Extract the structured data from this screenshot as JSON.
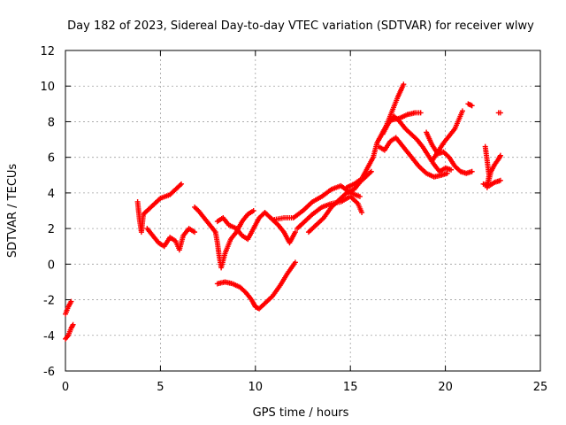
{
  "chart_data": {
    "type": "scatter",
    "title": "Day 182 of 2023, Sidereal Day-to-day VTEC variation (SDTVAR) for receiver wlwy",
    "xlabel": "GPS time / hours",
    "ylabel": "SDTVAR / TECUs",
    "xlim": [
      0,
      25
    ],
    "ylim": [
      -6,
      12
    ],
    "xticks": [
      "0",
      "5",
      "10",
      "15",
      "20",
      "25"
    ],
    "yticks": [
      "-6",
      "-4",
      "-2",
      "0",
      "2",
      "4",
      "6",
      "8",
      "10",
      "12"
    ],
    "grid": true,
    "marker": "plus",
    "series_color": "#ff0000",
    "segments": [
      {
        "name": "trace-1",
        "points": [
          [
            0.0,
            -2.8
          ],
          [
            0.15,
            -2.4
          ],
          [
            0.3,
            -2.1
          ]
        ]
      },
      {
        "name": "trace-2",
        "points": [
          [
            0.0,
            -4.2
          ],
          [
            0.15,
            -4.0
          ],
          [
            0.3,
            -3.6
          ],
          [
            0.4,
            -3.4
          ]
        ]
      },
      {
        "name": "trace-3",
        "points": [
          [
            3.8,
            3.5
          ],
          [
            3.9,
            2.5
          ],
          [
            4.0,
            1.8
          ],
          [
            4.1,
            2.8
          ],
          [
            4.3,
            3.0
          ],
          [
            4.6,
            3.3
          ],
          [
            5.0,
            3.7
          ],
          [
            5.5,
            3.9
          ],
          [
            5.8,
            4.2
          ],
          [
            6.1,
            4.5
          ]
        ]
      },
      {
        "name": "trace-4",
        "points": [
          [
            4.3,
            2.0
          ],
          [
            4.6,
            1.6
          ],
          [
            4.9,
            1.2
          ],
          [
            5.2,
            1.0
          ],
          [
            5.5,
            1.5
          ],
          [
            5.8,
            1.3
          ],
          [
            6.0,
            0.8
          ],
          [
            6.2,
            1.6
          ],
          [
            6.5,
            2.0
          ],
          [
            6.8,
            1.8
          ]
        ]
      },
      {
        "name": "trace-5",
        "points": [
          [
            6.8,
            3.2
          ],
          [
            7.0,
            3.0
          ],
          [
            7.3,
            2.6
          ],
          [
            7.6,
            2.2
          ],
          [
            7.9,
            1.8
          ],
          [
            8.0,
            1.2
          ],
          [
            8.1,
            0.4
          ],
          [
            8.2,
            -0.2
          ],
          [
            8.4,
            0.6
          ],
          [
            8.7,
            1.4
          ],
          [
            9.0,
            1.8
          ],
          [
            9.3,
            2.4
          ],
          [
            9.6,
            2.8
          ],
          [
            9.9,
            3.0
          ]
        ]
      },
      {
        "name": "trace-6",
        "points": [
          [
            8.0,
            2.4
          ],
          [
            8.3,
            2.6
          ],
          [
            8.6,
            2.2
          ],
          [
            9.0,
            2.0
          ],
          [
            9.3,
            1.6
          ],
          [
            9.6,
            1.4
          ],
          [
            9.9,
            2.0
          ],
          [
            10.2,
            2.6
          ],
          [
            10.5,
            2.9
          ],
          [
            10.8,
            2.6
          ],
          [
            11.2,
            2.2
          ],
          [
            11.5,
            1.8
          ],
          [
            11.8,
            1.2
          ],
          [
            12.1,
            1.8
          ]
        ]
      },
      {
        "name": "trace-7",
        "points": [
          [
            8.0,
            -1.1
          ],
          [
            8.4,
            -1.0
          ],
          [
            8.8,
            -1.1
          ],
          [
            9.2,
            -1.3
          ],
          [
            9.5,
            -1.6
          ],
          [
            9.8,
            -2.0
          ],
          [
            10.0,
            -2.4
          ],
          [
            10.2,
            -2.5
          ],
          [
            10.5,
            -2.2
          ],
          [
            10.9,
            -1.8
          ],
          [
            11.3,
            -1.2
          ],
          [
            11.7,
            -0.5
          ],
          [
            12.1,
            0.1
          ]
        ]
      },
      {
        "name": "trace-8",
        "points": [
          [
            11.0,
            2.5
          ],
          [
            11.5,
            2.6
          ],
          [
            12.0,
            2.6
          ],
          [
            12.5,
            3.0
          ],
          [
            13.0,
            3.5
          ],
          [
            13.5,
            3.8
          ],
          [
            14.0,
            4.2
          ],
          [
            14.5,
            4.4
          ],
          [
            15.0,
            4.0
          ],
          [
            15.5,
            3.8
          ]
        ]
      },
      {
        "name": "trace-9",
        "points": [
          [
            12.2,
            2.0
          ],
          [
            12.6,
            2.4
          ],
          [
            13.0,
            2.8
          ],
          [
            13.5,
            3.2
          ],
          [
            14.0,
            3.4
          ],
          [
            14.5,
            3.5
          ],
          [
            15.0,
            3.8
          ],
          [
            15.4,
            3.4
          ],
          [
            15.6,
            2.9
          ]
        ]
      },
      {
        "name": "trace-10",
        "points": [
          [
            12.8,
            1.8
          ],
          [
            13.2,
            2.2
          ],
          [
            13.6,
            2.6
          ],
          [
            14.0,
            3.2
          ],
          [
            14.4,
            3.6
          ],
          [
            14.8,
            4.0
          ],
          [
            15.2,
            4.2
          ],
          [
            15.5,
            4.6
          ],
          [
            15.8,
            4.9
          ],
          [
            16.1,
            5.2
          ]
        ]
      },
      {
        "name": "trace-11",
        "points": [
          [
            14.8,
            4.3
          ],
          [
            15.2,
            4.5
          ],
          [
            15.6,
            4.8
          ],
          [
            15.9,
            5.4
          ],
          [
            16.2,
            6.0
          ],
          [
            16.4,
            6.8
          ],
          [
            16.6,
            7.2
          ],
          [
            16.9,
            7.8
          ],
          [
            17.2,
            8.6
          ],
          [
            17.5,
            9.4
          ],
          [
            17.8,
            10.1
          ]
        ]
      },
      {
        "name": "trace-12",
        "points": [
          [
            16.5,
            6.6
          ],
          [
            16.8,
            6.4
          ],
          [
            17.1,
            6.9
          ],
          [
            17.4,
            7.1
          ],
          [
            17.7,
            6.7
          ],
          [
            18.0,
            6.3
          ],
          [
            18.3,
            5.9
          ],
          [
            18.6,
            5.5
          ],
          [
            19.0,
            5.1
          ],
          [
            19.4,
            4.9
          ],
          [
            19.8,
            5.0
          ],
          [
            20.1,
            5.1
          ]
        ]
      },
      {
        "name": "trace-13",
        "points": [
          [
            16.7,
            7.3
          ],
          [
            17.0,
            7.9
          ],
          [
            17.3,
            8.3
          ],
          [
            17.6,
            8.0
          ],
          [
            17.9,
            7.6
          ],
          [
            18.2,
            7.3
          ],
          [
            18.5,
            7.0
          ],
          [
            18.8,
            6.6
          ],
          [
            19.1,
            6.1
          ],
          [
            19.4,
            5.6
          ],
          [
            19.7,
            5.2
          ],
          [
            20.0,
            5.4
          ],
          [
            20.3,
            5.3
          ]
        ]
      },
      {
        "name": "trace-14",
        "points": [
          [
            17.2,
            8.1
          ],
          [
            17.6,
            8.2
          ],
          [
            18.0,
            8.4
          ],
          [
            18.4,
            8.5
          ],
          [
            18.7,
            8.5
          ]
        ]
      },
      {
        "name": "trace-15",
        "points": [
          [
            19.0,
            7.4
          ],
          [
            19.3,
            6.7
          ],
          [
            19.6,
            6.2
          ],
          [
            19.9,
            6.3
          ],
          [
            20.2,
            6.0
          ],
          [
            20.5,
            5.5
          ],
          [
            20.8,
            5.2
          ],
          [
            21.1,
            5.1
          ],
          [
            21.4,
            5.2
          ]
        ]
      },
      {
        "name": "trace-16",
        "points": [
          [
            19.3,
            5.8
          ],
          [
            19.6,
            6.3
          ],
          [
            19.9,
            6.8
          ],
          [
            20.2,
            7.2
          ],
          [
            20.5,
            7.6
          ],
          [
            20.7,
            8.1
          ],
          [
            20.9,
            8.6
          ]
        ]
      },
      {
        "name": "trace-17",
        "points": [
          [
            21.2,
            9.0
          ],
          [
            21.4,
            8.9
          ]
        ]
      },
      {
        "name": "trace-18",
        "points": [
          [
            22.1,
            6.6
          ],
          [
            22.2,
            5.8
          ],
          [
            22.3,
            5.0
          ],
          [
            22.2,
            4.3
          ],
          [
            22.4,
            5.2
          ],
          [
            22.6,
            5.6
          ],
          [
            22.8,
            5.9
          ],
          [
            22.9,
            6.1
          ]
        ]
      },
      {
        "name": "trace-19",
        "points": [
          [
            22.0,
            4.5
          ],
          [
            22.3,
            4.4
          ],
          [
            22.6,
            4.6
          ],
          [
            22.9,
            4.7
          ]
        ]
      },
      {
        "name": "trace-20",
        "points": [
          [
            22.8,
            8.5
          ],
          [
            22.9,
            8.5
          ]
        ]
      }
    ]
  }
}
